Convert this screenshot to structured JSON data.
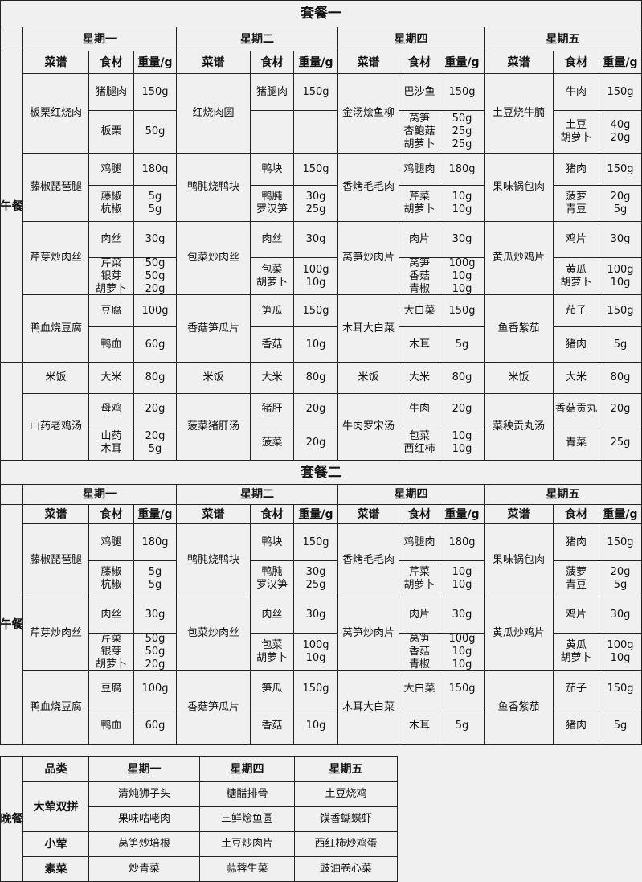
{
  "menus": [
    {
      "title": "套餐一",
      "meal": "午餐",
      "columns": [
        "菜谱",
        "食材",
        "重量/g"
      ],
      "days": [
        {
          "name": "星期一",
          "dishes": [
            {
              "dish": "板栗红烧肉",
              "items": [
                {
                  "names": [
                    "猪腿肉"
                  ],
                  "weights": [
                    "150g"
                  ]
                },
                {
                  "names": [
                    "板栗"
                  ],
                  "weights": [
                    "50g"
                  ]
                }
              ]
            },
            {
              "dish": "藤椒琵琶腿",
              "items": [
                {
                  "names": [
                    "鸡腿"
                  ],
                  "weights": [
                    "180g"
                  ]
                },
                {
                  "names": [
                    "藤椒",
                    "杭椒"
                  ],
                  "weights": [
                    "5g",
                    "5g"
                  ]
                }
              ]
            },
            {
              "dish": "芹芽炒肉丝",
              "items": [
                {
                  "names": [
                    "肉丝"
                  ],
                  "weights": [
                    "30g"
                  ]
                },
                {
                  "names": [
                    "芹菜",
                    "银芽",
                    "胡萝卜"
                  ],
                  "weights": [
                    "50g",
                    "50g",
                    "20g"
                  ]
                }
              ]
            },
            {
              "dish": "鸭血烧豆腐",
              "items": [
                {
                  "names": [
                    "豆腐"
                  ],
                  "weights": [
                    "100g"
                  ]
                },
                {
                  "names": [
                    "鸭血"
                  ],
                  "weights": [
                    "60g"
                  ]
                }
              ]
            },
            {
              "dish": "米饭",
              "items": [
                {
                  "names": [
                    "大米"
                  ],
                  "weights": [
                    "80g"
                  ]
                }
              ]
            },
            {
              "dish": "山药老鸡汤",
              "items": [
                {
                  "names": [
                    "母鸡"
                  ],
                  "weights": [
                    "20g"
                  ]
                },
                {
                  "names": [
                    "山药",
                    "木耳"
                  ],
                  "weights": [
                    "20g",
                    "5g"
                  ]
                }
              ]
            }
          ]
        },
        {
          "name": "星期二",
          "dishes": [
            {
              "dish": "红烧肉圆",
              "items": [
                {
                  "names": [
                    "猪腿肉"
                  ],
                  "weights": [
                    "150g"
                  ]
                }
              ]
            },
            {
              "dish": "鸭肫烧鸭块",
              "items": [
                {
                  "names": [
                    "鸭块"
                  ],
                  "weights": [
                    "150g"
                  ]
                },
                {
                  "names": [
                    "鸭肫",
                    "罗汉笋"
                  ],
                  "weights": [
                    "30g",
                    "25g"
                  ]
                }
              ]
            },
            {
              "dish": "包菜炒肉丝",
              "items": [
                {
                  "names": [
                    "肉丝"
                  ],
                  "weights": [
                    "30g"
                  ]
                },
                {
                  "names": [
                    "包菜",
                    "胡萝卜"
                  ],
                  "weights": [
                    "100g",
                    "10g"
                  ]
                }
              ]
            },
            {
              "dish": "香菇笋瓜片",
              "items": [
                {
                  "names": [
                    "笋瓜"
                  ],
                  "weights": [
                    "150g"
                  ]
                },
                {
                  "names": [
                    "香菇"
                  ],
                  "weights": [
                    "10g"
                  ]
                }
              ]
            },
            {
              "dish": "米饭",
              "items": [
                {
                  "names": [
                    "大米"
                  ],
                  "weights": [
                    "80g"
                  ]
                }
              ]
            },
            {
              "dish": "菠菜猪肝汤",
              "items": [
                {
                  "names": [
                    "猪肝"
                  ],
                  "weights": [
                    "20g"
                  ]
                },
                {
                  "names": [
                    "菠菜"
                  ],
                  "weights": [
                    "20g"
                  ]
                }
              ]
            }
          ]
        },
        {
          "name": "星期四",
          "dishes": [
            {
              "dish": "金汤烩鱼柳",
              "items": [
                {
                  "names": [
                    "巴沙鱼"
                  ],
                  "weights": [
                    "150g"
                  ]
                },
                {
                  "names": [
                    "莴笋",
                    "杏鲍菇",
                    "胡萝卜"
                  ],
                  "weights": [
                    "50g",
                    "25g",
                    "25g"
                  ]
                }
              ]
            },
            {
              "dish": "香烤毛毛肉",
              "items": [
                {
                  "names": [
                    "鸡腿肉"
                  ],
                  "weights": [
                    "180g"
                  ]
                },
                {
                  "names": [
                    "芹菜",
                    "胡萝卜"
                  ],
                  "weights": [
                    "10g",
                    "10g"
                  ]
                }
              ]
            },
            {
              "dish": "莴笋炒肉片",
              "items": [
                {
                  "names": [
                    "肉片"
                  ],
                  "weights": [
                    "30g"
                  ]
                },
                {
                  "names": [
                    "莴笋",
                    "香菇",
                    "青椒"
                  ],
                  "weights": [
                    "100g",
                    "10g",
                    "10g"
                  ]
                }
              ]
            },
            {
              "dish": "木耳大白菜",
              "items": [
                {
                  "names": [
                    "大白菜"
                  ],
                  "weights": [
                    "150g"
                  ]
                },
                {
                  "names": [
                    "木耳"
                  ],
                  "weights": [
                    "5g"
                  ]
                }
              ]
            },
            {
              "dish": "米饭",
              "items": [
                {
                  "names": [
                    "大米"
                  ],
                  "weights": [
                    "80g"
                  ]
                }
              ]
            },
            {
              "dish": "牛肉罗宋汤",
              "items": [
                {
                  "names": [
                    "牛肉"
                  ],
                  "weights": [
                    "20g"
                  ]
                },
                {
                  "names": [
                    "包菜",
                    "西红柿"
                  ],
                  "weights": [
                    "10g",
                    "10g"
                  ]
                }
              ]
            }
          ]
        },
        {
          "name": "星期五",
          "dishes": [
            {
              "dish": "土豆烧牛腩",
              "items": [
                {
                  "names": [
                    "牛肉"
                  ],
                  "weights": [
                    "150g"
                  ]
                },
                {
                  "names": [
                    "土豆",
                    "胡萝卜"
                  ],
                  "weights": [
                    "40g",
                    "20g"
                  ]
                }
              ]
            },
            {
              "dish": "果味锅包肉",
              "items": [
                {
                  "names": [
                    "猪肉"
                  ],
                  "weights": [
                    "150g"
                  ]
                },
                {
                  "names": [
                    "菠萝",
                    "青豆"
                  ],
                  "weights": [
                    "20g",
                    "5g"
                  ]
                }
              ]
            },
            {
              "dish": "黄瓜炒鸡片",
              "items": [
                {
                  "names": [
                    "鸡片"
                  ],
                  "weights": [
                    "30g"
                  ]
                },
                {
                  "names": [
                    "黄瓜",
                    "胡萝卜"
                  ],
                  "weights": [
                    "100g",
                    "10g"
                  ]
                }
              ]
            },
            {
              "dish": "鱼香紫茄",
              "items": [
                {
                  "names": [
                    "茄子"
                  ],
                  "weights": [
                    "150g"
                  ]
                },
                {
                  "names": [
                    "猪肉"
                  ],
                  "weights": [
                    "5g"
                  ]
                }
              ]
            },
            {
              "dish": "米饭",
              "items": [
                {
                  "names": [
                    "大米"
                  ],
                  "weights": [
                    "80g"
                  ]
                }
              ]
            },
            {
              "dish": "菜秧贡丸汤",
              "items": [
                {
                  "names": [
                    "香菇贡丸"
                  ],
                  "weights": [
                    "20g"
                  ]
                },
                {
                  "names": [
                    "青菜"
                  ],
                  "weights": [
                    "25g"
                  ]
                }
              ]
            }
          ]
        }
      ]
    },
    {
      "title": "套餐二",
      "meal": "午餐",
      "columns": [
        "菜谱",
        "食材",
        "重量/g"
      ],
      "days": [
        {
          "name": "星期一",
          "dishes": [
            {
              "dish": "藤椒琵琶腿",
              "items": [
                {
                  "names": [
                    "鸡腿"
                  ],
                  "weights": [
                    "180g"
                  ]
                },
                {
                  "names": [
                    "藤椒",
                    "杭椒"
                  ],
                  "weights": [
                    "5g",
                    "5g"
                  ]
                }
              ]
            },
            {
              "dish": "芹芽炒肉丝",
              "items": [
                {
                  "names": [
                    "肉丝"
                  ],
                  "weights": [
                    "30g"
                  ]
                },
                {
                  "names": [
                    "芹菜",
                    "银芽",
                    "胡萝卜"
                  ],
                  "weights": [
                    "50g",
                    "50g",
                    "20g"
                  ]
                }
              ]
            },
            {
              "dish": "鸭血烧豆腐",
              "items": [
                {
                  "names": [
                    "豆腐"
                  ],
                  "weights": [
                    "100g"
                  ]
                },
                {
                  "names": [
                    "鸭血"
                  ],
                  "weights": [
                    "60g"
                  ]
                }
              ]
            }
          ]
        },
        {
          "name": "星期二",
          "dishes": [
            {
              "dish": "鸭肫烧鸭块",
              "items": [
                {
                  "names": [
                    "鸭块"
                  ],
                  "weights": [
                    "150g"
                  ]
                },
                {
                  "names": [
                    "鸭肫",
                    "罗汉笋"
                  ],
                  "weights": [
                    "30g",
                    "25g"
                  ]
                }
              ]
            },
            {
              "dish": "包菜炒肉丝",
              "items": [
                {
                  "names": [
                    "肉丝"
                  ],
                  "weights": [
                    "30g"
                  ]
                },
                {
                  "names": [
                    "包菜",
                    "胡萝卜"
                  ],
                  "weights": [
                    "100g",
                    "10g"
                  ]
                }
              ]
            },
            {
              "dish": "香菇笋瓜片",
              "items": [
                {
                  "names": [
                    "笋瓜"
                  ],
                  "weights": [
                    "150g"
                  ]
                },
                {
                  "names": [
                    "香菇"
                  ],
                  "weights": [
                    "10g"
                  ]
                }
              ]
            }
          ]
        },
        {
          "name": "星期四",
          "dishes": [
            {
              "dish": "香烤毛毛肉",
              "items": [
                {
                  "names": [
                    "鸡腿肉"
                  ],
                  "weights": [
                    "180g"
                  ]
                },
                {
                  "names": [
                    "芹菜",
                    "胡萝卜"
                  ],
                  "weights": [
                    "10g",
                    "10g"
                  ]
                }
              ]
            },
            {
              "dish": "莴笋炒肉片",
              "items": [
                {
                  "names": [
                    "肉片"
                  ],
                  "weights": [
                    "30g"
                  ]
                },
                {
                  "names": [
                    "莴笋",
                    "香菇",
                    "青椒"
                  ],
                  "weights": [
                    "100g",
                    "10g",
                    "10g"
                  ]
                }
              ]
            },
            {
              "dish": "木耳大白菜",
              "items": [
                {
                  "names": [
                    "大白菜"
                  ],
                  "weights": [
                    "150g"
                  ]
                },
                {
                  "names": [
                    "木耳"
                  ],
                  "weights": [
                    "5g"
                  ]
                }
              ]
            }
          ]
        },
        {
          "name": "星期五",
          "dishes": [
            {
              "dish": "果味锅包肉",
              "items": [
                {
                  "names": [
                    "猪肉"
                  ],
                  "weights": [
                    "150g"
                  ]
                },
                {
                  "names": [
                    "菠萝",
                    "青豆"
                  ],
                  "weights": [
                    "20g",
                    "5g"
                  ]
                }
              ]
            },
            {
              "dish": "黄瓜炒鸡片",
              "items": [
                {
                  "names": [
                    "鸡片"
                  ],
                  "weights": [
                    "30g"
                  ]
                },
                {
                  "names": [
                    "黄瓜",
                    "胡萝卜"
                  ],
                  "weights": [
                    "100g",
                    "10g"
                  ]
                }
              ]
            },
            {
              "dish": "鱼香紫茄",
              "items": [
                {
                  "names": [
                    "茄子"
                  ],
                  "weights": [
                    "150g"
                  ]
                },
                {
                  "names": [
                    "猪肉"
                  ],
                  "weights": [
                    "5g"
                  ]
                }
              ]
            }
          ]
        }
      ]
    }
  ],
  "dinner": {
    "meal": "晚餐",
    "header": [
      "品类",
      "星期一",
      "星期四",
      "星期五"
    ],
    "groups": [
      {
        "category": "大荤双拼",
        "rows": [
          [
            "清炖狮子头",
            "糖醋排骨",
            "土豆烧鸡"
          ],
          [
            "果味咕咾肉",
            "三鲜烩鱼圆",
            "馍香蝴蝶虾"
          ]
        ]
      },
      {
        "category": "小荤",
        "rows": [
          [
            "莴笋炒培根",
            "土豆炒肉片",
            "西红柿炒鸡蛋"
          ]
        ]
      },
      {
        "category": "素菜",
        "rows": [
          [
            "炒青菜",
            "蒜蓉生菜",
            "豉油卷心菜"
          ]
        ]
      }
    ]
  }
}
